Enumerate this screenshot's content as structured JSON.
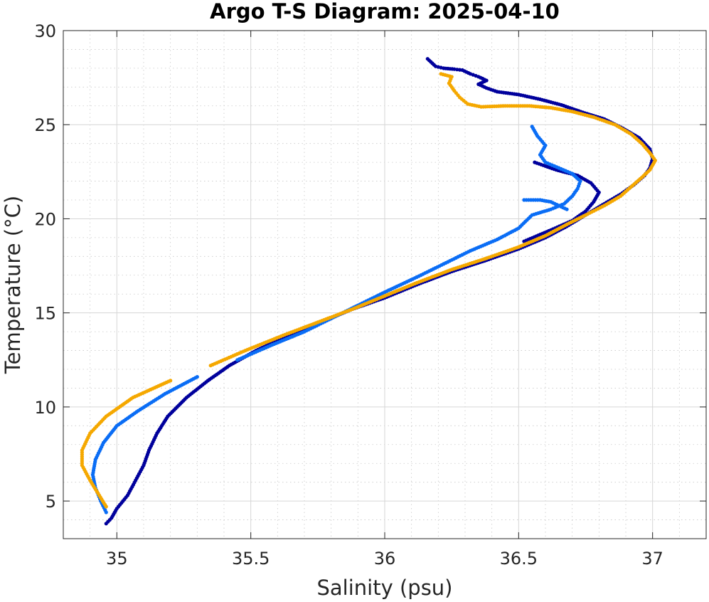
{
  "chart_data": {
    "type": "scatter",
    "title": "Argo T-S Diagram: 2025-04-10",
    "xlabel": "Salinity (psu)",
    "ylabel": "Temperature (°C)",
    "xlim": [
      34.8,
      37.2
    ],
    "ylim": [
      3,
      30
    ],
    "x_ticks": [
      35,
      35.5,
      36,
      36.5,
      37
    ],
    "x_tick_labels": [
      "35",
      "35.5",
      "36",
      "36.5",
      "37"
    ],
    "y_ticks": [
      5,
      10,
      15,
      20,
      25,
      30
    ],
    "y_tick_labels": [
      "5",
      "10",
      "15",
      "20",
      "25",
      "30"
    ],
    "grid": true,
    "minor_grid": true,
    "legend": "none",
    "series": [
      {
        "color": "#00009c",
        "points": [
          [
            36.16,
            28.5
          ],
          [
            36.19,
            28.1
          ],
          [
            36.22,
            28.0
          ],
          [
            36.26,
            27.95
          ],
          [
            36.29,
            27.9
          ],
          [
            36.32,
            27.7
          ],
          [
            36.35,
            27.55
          ],
          [
            36.38,
            27.35
          ],
          [
            36.35,
            27.15
          ],
          [
            36.38,
            26.95
          ],
          [
            36.42,
            26.75
          ],
          [
            36.5,
            26.6
          ],
          [
            36.58,
            26.35
          ],
          [
            36.66,
            26.05
          ],
          [
            36.74,
            25.65
          ],
          [
            36.82,
            25.3
          ],
          [
            36.89,
            24.8
          ],
          [
            36.95,
            24.3
          ],
          [
            36.99,
            23.7
          ],
          [
            37.0,
            23.2
          ],
          [
            36.99,
            22.7
          ],
          [
            36.97,
            22.3
          ],
          [
            36.93,
            21.8
          ],
          [
            36.88,
            21.3
          ],
          [
            36.82,
            20.8
          ],
          [
            36.75,
            20.2
          ],
          [
            36.68,
            19.6
          ],
          [
            36.6,
            19.0
          ],
          [
            36.5,
            18.4
          ],
          [
            36.38,
            17.8
          ],
          [
            36.25,
            17.2
          ],
          [
            36.12,
            16.5
          ],
          [
            36.0,
            15.8
          ],
          [
            35.88,
            15.2
          ],
          [
            35.76,
            14.5
          ],
          [
            35.64,
            13.8
          ],
          [
            35.52,
            13.0
          ],
          [
            35.42,
            12.2
          ],
          [
            35.34,
            11.4
          ],
          [
            35.26,
            10.5
          ],
          [
            35.19,
            9.5
          ],
          [
            35.15,
            8.6
          ],
          [
            35.12,
            7.7
          ],
          [
            35.1,
            6.9
          ],
          [
            35.07,
            6.1
          ],
          [
            35.04,
            5.3
          ],
          [
            35.0,
            4.6
          ],
          [
            34.98,
            4.1
          ],
          [
            34.96,
            3.8
          ],
          [
            36.56,
            23.0
          ],
          [
            36.64,
            22.6
          ],
          [
            36.72,
            22.3
          ],
          [
            36.77,
            21.9
          ],
          [
            36.8,
            21.4
          ],
          [
            36.78,
            20.9
          ],
          [
            36.75,
            20.4
          ],
          [
            36.7,
            19.9
          ],
          [
            36.62,
            19.4
          ],
          [
            36.52,
            18.8
          ]
        ]
      },
      {
        "color": "#0a6df5",
        "points": [
          [
            36.55,
            24.9
          ],
          [
            36.57,
            24.4
          ],
          [
            36.6,
            23.9
          ],
          [
            36.58,
            23.4
          ],
          [
            36.6,
            23.0
          ],
          [
            36.65,
            22.7
          ],
          [
            36.7,
            22.4
          ],
          [
            36.73,
            22.0
          ],
          [
            36.72,
            21.6
          ],
          [
            36.7,
            21.2
          ],
          [
            36.67,
            20.8
          ],
          [
            36.62,
            20.5
          ],
          [
            36.55,
            20.2
          ],
          [
            36.5,
            19.5
          ],
          [
            36.42,
            18.9
          ],
          [
            36.32,
            18.3
          ],
          [
            36.22,
            17.6
          ],
          [
            36.12,
            16.9
          ],
          [
            36.0,
            16.1
          ],
          [
            35.9,
            15.4
          ],
          [
            35.8,
            14.7
          ],
          [
            35.7,
            14.0
          ],
          [
            35.58,
            13.3
          ],
          [
            35.45,
            12.5
          ],
          [
            35.3,
            11.6
          ],
          [
            35.18,
            10.7
          ],
          [
            35.08,
            9.8
          ],
          [
            35.0,
            9.0
          ],
          [
            34.95,
            8.1
          ],
          [
            34.92,
            7.2
          ],
          [
            34.91,
            6.4
          ],
          [
            34.92,
            5.7
          ],
          [
            34.94,
            5.0
          ],
          [
            34.96,
            4.4
          ],
          [
            36.52,
            21.0
          ],
          [
            36.58,
            21.0
          ],
          [
            36.62,
            20.9
          ],
          [
            36.68,
            20.5
          ]
        ]
      },
      {
        "color": "#f5a800",
        "points": [
          [
            36.21,
            27.7
          ],
          [
            36.25,
            27.55
          ],
          [
            36.24,
            27.2
          ],
          [
            36.26,
            26.8
          ],
          [
            36.28,
            26.45
          ],
          [
            36.31,
            26.1
          ],
          [
            36.36,
            25.95
          ],
          [
            36.45,
            26.0
          ],
          [
            36.54,
            26.0
          ],
          [
            36.62,
            25.9
          ],
          [
            36.7,
            25.7
          ],
          [
            36.78,
            25.4
          ],
          [
            36.86,
            25.0
          ],
          [
            36.92,
            24.5
          ],
          [
            36.96,
            24.0
          ],
          [
            36.99,
            23.5
          ],
          [
            37.01,
            23.1
          ],
          [
            36.99,
            22.6
          ],
          [
            36.96,
            22.2
          ],
          [
            36.92,
            21.7
          ],
          [
            36.88,
            21.2
          ],
          [
            36.82,
            20.7
          ],
          [
            36.75,
            20.2
          ],
          [
            36.68,
            19.7
          ],
          [
            36.6,
            19.1
          ],
          [
            36.5,
            18.5
          ],
          [
            36.38,
            17.9
          ],
          [
            36.25,
            17.3
          ],
          [
            36.12,
            16.6
          ],
          [
            36.0,
            15.9
          ],
          [
            35.88,
            15.2
          ],
          [
            35.75,
            14.5
          ],
          [
            35.62,
            13.8
          ],
          [
            35.48,
            13.0
          ],
          [
            35.35,
            12.2
          ],
          [
            35.2,
            11.4
          ],
          [
            35.06,
            10.5
          ],
          [
            34.96,
            9.5
          ],
          [
            34.9,
            8.6
          ],
          [
            34.87,
            7.7
          ],
          [
            34.87,
            6.9
          ],
          [
            34.9,
            6.1
          ],
          [
            34.93,
            5.4
          ],
          [
            34.96,
            4.7
          ]
        ]
      }
    ]
  }
}
